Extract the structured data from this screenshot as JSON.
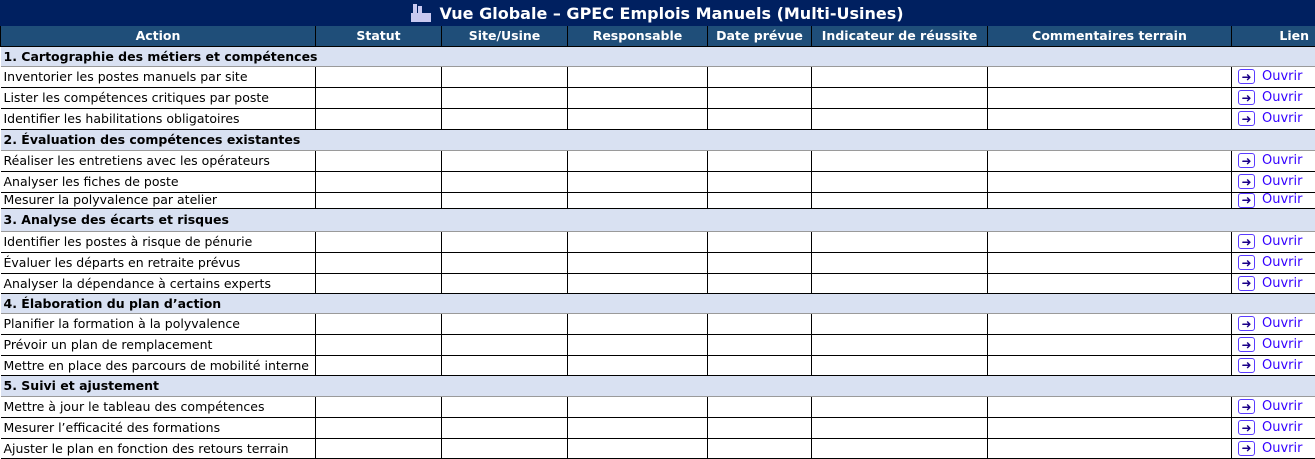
{
  "title": "Vue Globale – GPEC Emplois Manuels (Multi-Usines)",
  "title_icon": "factory-icon",
  "columns": [
    "Action",
    "Statut",
    "Site/Usine",
    "Responsable",
    "Date prévue",
    "Indicateur de réussite",
    "Commentaires terrain",
    "Lien"
  ],
  "link_label": "Ouvrir",
  "link_icon": "arrow-right-icon",
  "colors": {
    "title_bg": "#002060",
    "header_bg": "#1F4E79",
    "section_bg": "#D9E1F2",
    "link": "#3300ff"
  },
  "sections": [
    {
      "title": "1. Cartographie des métiers et compétences",
      "items": [
        "Inventorier les postes manuels par site",
        "Lister les compétences critiques par poste",
        "Identifier les habilitations obligatoires"
      ]
    },
    {
      "title": "2. Évaluation des compétences existantes",
      "items": [
        "Réaliser les entretiens avec les opérateurs",
        "Analyser les fiches de poste",
        "Mesurer la polyvalence par atelier"
      ]
    },
    {
      "title": "3. Analyse des écarts et risques",
      "items": [
        "Identifier les postes à risque de pénurie",
        "Évaluer les départs en retraite prévus",
        "Analyser la dépendance à certains experts"
      ]
    },
    {
      "title": "4. Élaboration du plan d’action",
      "items": [
        "Planifier la formation à la polyvalence",
        "Prévoir un plan de remplacement",
        "Mettre en place des parcours de mobilité interne"
      ]
    },
    {
      "title": "5. Suivi et ajustement",
      "items": [
        "Mettre à jour le tableau des compétences",
        "Mesurer l’efficacité des formations",
        "Ajuster le plan en fonction des retours terrain"
      ]
    }
  ]
}
